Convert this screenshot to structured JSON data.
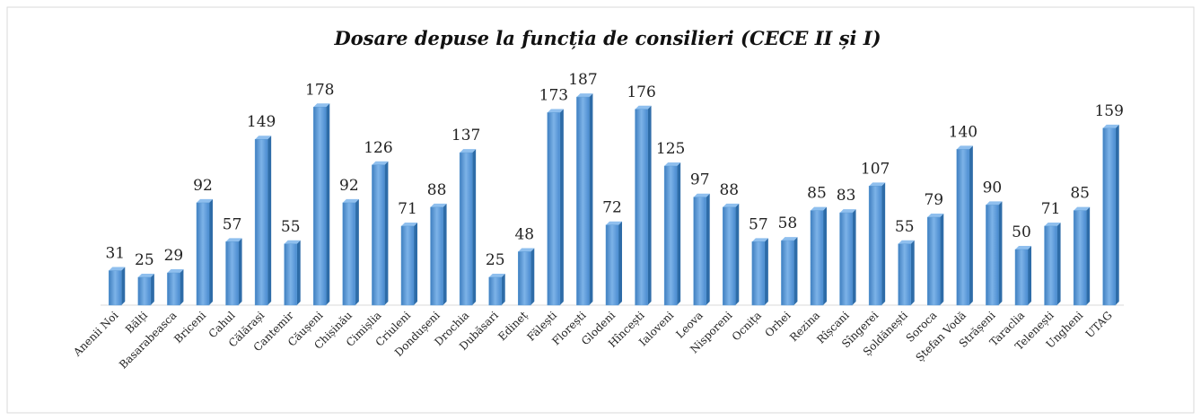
{
  "chart_data": {
    "type": "bar",
    "title": "Dosare depuse la funcția de consilieri (CECE II și I)",
    "categories": [
      "Anenii Noi",
      "Bălți",
      "Basarabeasca",
      "Briceni",
      "Cahul",
      "Călărași",
      "Cantemir",
      "Căușeni",
      "Chișinău",
      "Cimișlia",
      "Criuleni",
      "Dondușeni",
      "Drochia",
      "Dubăsari",
      "Edineț",
      "Fălești",
      "Florești",
      "Glodeni",
      "Hîncești",
      "Ialoveni",
      "Leova",
      "Nisporeni",
      "Ocnița",
      "Orhei",
      "Rezina",
      "Rîșcani",
      "Sîngerei",
      "Șoldănești",
      "Soroca",
      "Ștefan Vodă",
      "Strășeni",
      "Taraclia",
      "Telenești",
      "Ungheni",
      "UTAG"
    ],
    "values": [
      31,
      25,
      29,
      92,
      57,
      149,
      55,
      178,
      92,
      126,
      71,
      88,
      137,
      25,
      48,
      173,
      187,
      72,
      176,
      125,
      97,
      88,
      57,
      58,
      85,
      83,
      107,
      55,
      79,
      140,
      90,
      50,
      71,
      85,
      159
    ],
    "color": "#5b9bd5",
    "ylim": [
      0,
      200
    ]
  }
}
